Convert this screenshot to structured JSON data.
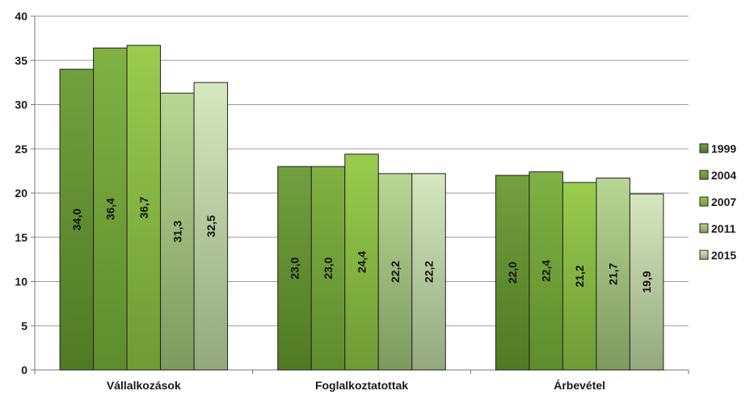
{
  "chart_data": {
    "type": "bar",
    "title": "",
    "xlabel": "",
    "ylabel": "",
    "ylim": [
      0,
      40
    ],
    "yticks": [
      0,
      5,
      10,
      15,
      20,
      25,
      30,
      35,
      40
    ],
    "grid": true,
    "legend_position": "right",
    "categories": [
      "Vállalkozások",
      "Foglalkoztatottak",
      "Árbevétel"
    ],
    "series": [
      {
        "name": "1999",
        "values": [
          34.0,
          23.0,
          22.0
        ],
        "labels": [
          "34,0",
          "23,0",
          "22,0"
        ],
        "color_top": "#72a03e",
        "color_bottom": "#4f7a24"
      },
      {
        "name": "2004",
        "values": [
          36.4,
          23.0,
          22.4
        ],
        "labels": [
          "36,4",
          "23,0",
          "22,4"
        ],
        "color_top": "#80b143",
        "color_bottom": "#5e8d2d"
      },
      {
        "name": "2007",
        "values": [
          36.7,
          24.4,
          21.2
        ],
        "labels": [
          "36,7",
          "24,4",
          "21,2"
        ],
        "color_top": "#99cc4e",
        "color_bottom": "#6e9b35"
      },
      {
        "name": "2011",
        "values": [
          31.3,
          22.2,
          21.7
        ],
        "labels": [
          "31,3",
          "22,2",
          "21,7"
        ],
        "color_top": "#b8d693",
        "color_bottom": "#7d9a5f"
      },
      {
        "name": "2015",
        "values": [
          32.5,
          22.2,
          19.9
        ],
        "labels": [
          "32,5",
          "22,2",
          "19,9"
        ],
        "color_top": "#d6e8c0",
        "color_bottom": "#93a87c"
      }
    ]
  }
}
